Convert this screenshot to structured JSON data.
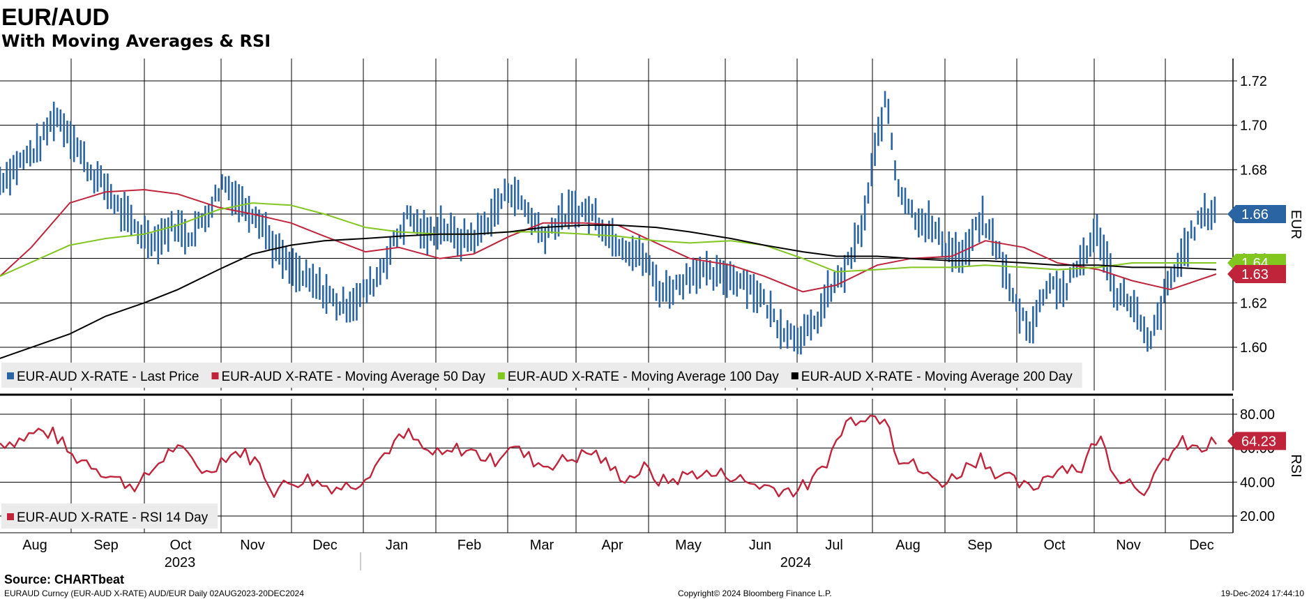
{
  "title": "EUR/AUD",
  "subtitle": "With Moving Averages & RSI",
  "source": "Source: CHARTbeat",
  "footer_left": "EURAUD Curncy (EUR-AUD X-RATE) AUD/EUR  Daily 02AUG2023-20DEC2024",
  "footer_center": "Copyright© 2024 Bloomberg Finance L.P.",
  "footer_right": "19-Dec-2024 17:44:10",
  "colors": {
    "price": "#2a64a3",
    "ma50": "#c0243b",
    "ma100": "#82c620",
    "ma200": "#000000",
    "rsi": "#c0243b"
  },
  "chart_data": [
    {
      "type": "line",
      "ylabel": "EUR",
      "ylim": [
        1.585,
        1.735
      ],
      "yticks": [
        1.6,
        1.62,
        1.64,
        1.66,
        1.68,
        1.7,
        1.72
      ],
      "ytick_labels": [
        "1.60",
        "1.62",
        "1.64",
        "1.66",
        "1.68",
        "1.70",
        "1.72"
      ],
      "grid": true,
      "legend_position": "bottom-left",
      "x_range": [
        "2023-08-02",
        "2024-12-20"
      ],
      "month_labels": [
        "Aug",
        "Sep",
        "Oct",
        "Nov",
        "Dec",
        "Jan",
        "Feb",
        "Mar",
        "Apr",
        "May",
        "Jun",
        "Jul",
        "Aug",
        "Sep",
        "Oct",
        "Nov",
        "Dec"
      ],
      "year_labels": [
        "2023",
        "2024"
      ],
      "series": [
        {
          "name": "EUR-AUD X-RATE - Last Price",
          "color": "#2a64a3",
          "style": "bars",
          "x": [
            "2023-08-02",
            "2023-08-10",
            "2023-08-18",
            "2023-08-25",
            "2023-09-01",
            "2023-09-08",
            "2023-09-15",
            "2023-09-22",
            "2023-09-29",
            "2023-10-06",
            "2023-10-13",
            "2023-10-20",
            "2023-10-27",
            "2023-11-03",
            "2023-11-10",
            "2023-11-17",
            "2023-11-24",
            "2023-12-01",
            "2023-12-08",
            "2023-12-15",
            "2023-12-22",
            "2023-12-29",
            "2024-01-05",
            "2024-01-12",
            "2024-01-19",
            "2024-01-26",
            "2024-02-02",
            "2024-02-09",
            "2024-02-16",
            "2024-02-23",
            "2024-03-01",
            "2024-03-08",
            "2024-03-15",
            "2024-03-22",
            "2024-03-29",
            "2024-04-05",
            "2024-04-12",
            "2024-04-19",
            "2024-04-26",
            "2024-05-03",
            "2024-05-10",
            "2024-05-17",
            "2024-05-24",
            "2024-05-31",
            "2024-06-07",
            "2024-06-14",
            "2024-06-21",
            "2024-06-28",
            "2024-07-05",
            "2024-07-12",
            "2024-07-19",
            "2024-07-26",
            "2024-08-02",
            "2024-08-05",
            "2024-08-09",
            "2024-08-16",
            "2024-08-23",
            "2024-08-30",
            "2024-09-06",
            "2024-09-13",
            "2024-09-20",
            "2024-09-27",
            "2024-10-04",
            "2024-10-11",
            "2024-10-18",
            "2024-10-25",
            "2024-11-01",
            "2024-11-08",
            "2024-11-15",
            "2024-11-22",
            "2024-11-29",
            "2024-12-06",
            "2024-12-13",
            "2024-12-20"
          ],
          "y": [
            1.675,
            1.683,
            1.69,
            1.705,
            1.695,
            1.68,
            1.672,
            1.66,
            1.652,
            1.648,
            1.655,
            1.65,
            1.66,
            1.675,
            1.665,
            1.66,
            1.645,
            1.635,
            1.63,
            1.625,
            1.618,
            1.622,
            1.63,
            1.645,
            1.66,
            1.65,
            1.655,
            1.648,
            1.65,
            1.66,
            1.672,
            1.662,
            1.65,
            1.658,
            1.662,
            1.66,
            1.65,
            1.645,
            1.64,
            1.625,
            1.628,
            1.635,
            1.632,
            1.632,
            1.63,
            1.622,
            1.61,
            1.605,
            1.608,
            1.625,
            1.635,
            1.655,
            1.7,
            1.712,
            1.675,
            1.66,
            1.655,
            1.645,
            1.64,
            1.658,
            1.645,
            1.62,
            1.608,
            1.63,
            1.625,
            1.64,
            1.652,
            1.625,
            1.62,
            1.6,
            1.625,
            1.642,
            1.658,
            1.662
          ]
        },
        {
          "name": "EUR-AUD X-RATE - Moving Average 50 Day",
          "color": "#c0243b",
          "style": "line",
          "x": [
            "2023-08-02",
            "2023-08-15",
            "2023-08-31",
            "2023-09-15",
            "2023-10-01",
            "2023-10-15",
            "2023-11-01",
            "2023-11-15",
            "2023-12-01",
            "2023-12-15",
            "2024-01-01",
            "2024-01-15",
            "2024-02-01",
            "2024-02-15",
            "2024-03-01",
            "2024-03-15",
            "2024-04-01",
            "2024-04-15",
            "2024-05-01",
            "2024-05-15",
            "2024-06-01",
            "2024-06-15",
            "2024-07-01",
            "2024-07-15",
            "2024-08-01",
            "2024-08-15",
            "2024-09-01",
            "2024-09-15",
            "2024-10-01",
            "2024-10-15",
            "2024-11-01",
            "2024-11-15",
            "2024-12-01",
            "2024-12-20"
          ],
          "y": [
            1.632,
            1.645,
            1.665,
            1.67,
            1.671,
            1.669,
            1.663,
            1.66,
            1.656,
            1.65,
            1.643,
            1.645,
            1.64,
            1.642,
            1.65,
            1.656,
            1.656,
            1.655,
            1.647,
            1.64,
            1.637,
            1.632,
            1.625,
            1.628,
            1.637,
            1.64,
            1.641,
            1.648,
            1.645,
            1.638,
            1.635,
            1.63,
            1.626,
            1.633
          ]
        },
        {
          "name": "EUR-AUD X-RATE - Moving Average 100 Day",
          "color": "#82c620",
          "style": "line",
          "x": [
            "2023-08-02",
            "2023-08-31",
            "2023-09-15",
            "2023-10-01",
            "2023-10-15",
            "2023-11-01",
            "2023-11-15",
            "2023-12-01",
            "2023-12-15",
            "2024-01-01",
            "2024-01-15",
            "2024-02-01",
            "2024-02-15",
            "2024-03-01",
            "2024-03-15",
            "2024-04-01",
            "2024-04-15",
            "2024-05-01",
            "2024-05-15",
            "2024-06-01",
            "2024-06-15",
            "2024-07-01",
            "2024-07-15",
            "2024-08-01",
            "2024-08-15",
            "2024-09-01",
            "2024-09-15",
            "2024-10-01",
            "2024-10-15",
            "2024-11-01",
            "2024-11-15",
            "2024-12-01",
            "2024-12-20"
          ],
          "y": [
            1.632,
            1.646,
            1.649,
            1.651,
            1.655,
            1.662,
            1.665,
            1.664,
            1.66,
            1.654,
            1.652,
            1.651,
            1.651,
            1.652,
            1.652,
            1.651,
            1.65,
            1.648,
            1.647,
            1.648,
            1.646,
            1.64,
            1.634,
            1.635,
            1.636,
            1.636,
            1.637,
            1.636,
            1.635,
            1.636,
            1.638,
            1.638,
            1.638
          ]
        },
        {
          "name": "EUR-AUD X-RATE - Moving Average 200 Day",
          "color": "#000000",
          "style": "line",
          "x": [
            "2023-08-02",
            "2023-08-31",
            "2023-09-15",
            "2023-10-01",
            "2023-10-15",
            "2023-11-01",
            "2023-11-15",
            "2023-12-01",
            "2023-12-15",
            "2024-01-01",
            "2024-01-15",
            "2024-02-01",
            "2024-02-15",
            "2024-03-01",
            "2024-03-15",
            "2024-04-01",
            "2024-04-15",
            "2024-05-01",
            "2024-05-15",
            "2024-06-01",
            "2024-06-15",
            "2024-07-01",
            "2024-07-15",
            "2024-08-01",
            "2024-08-15",
            "2024-09-01",
            "2024-09-15",
            "2024-10-01",
            "2024-10-15",
            "2024-11-01",
            "2024-11-15",
            "2024-12-01",
            "2024-12-20"
          ],
          "y": [
            1.595,
            1.606,
            1.614,
            1.62,
            1.626,
            1.635,
            1.642,
            1.646,
            1.648,
            1.649,
            1.65,
            1.651,
            1.651,
            1.652,
            1.654,
            1.655,
            1.655,
            1.654,
            1.652,
            1.649,
            1.646,
            1.643,
            1.641,
            1.641,
            1.64,
            1.639,
            1.639,
            1.638,
            1.637,
            1.637,
            1.636,
            1.636,
            1.635
          ]
        }
      ],
      "last_value_labels": [
        {
          "text": "1.66",
          "value": 1.66,
          "color": "#2a64a3"
        },
        {
          "text": "1.64",
          "value": 1.638,
          "color": "#82c620"
        },
        {
          "text": "1.63",
          "value": 1.633,
          "color": "#c0243b"
        }
      ]
    },
    {
      "type": "line",
      "ylabel": "RSI",
      "ylim": [
        15,
        87
      ],
      "yticks": [
        20,
        40,
        60,
        80
      ],
      "ytick_labels": [
        "20.00",
        "40.00",
        "60.00",
        "80.00"
      ],
      "grid": true,
      "legend_position": "bottom-left",
      "x_range": [
        "2023-08-02",
        "2024-12-20"
      ],
      "series": [
        {
          "name": "EUR-AUD X-RATE - RSI 14 Day",
          "color": "#c0243b",
          "x": [
            "2023-08-02",
            "2023-08-10",
            "2023-08-18",
            "2023-08-25",
            "2023-09-01",
            "2023-09-08",
            "2023-09-15",
            "2023-09-22",
            "2023-09-29",
            "2023-10-06",
            "2023-10-13",
            "2023-10-20",
            "2023-10-27",
            "2023-11-03",
            "2023-11-10",
            "2023-11-17",
            "2023-11-24",
            "2023-12-01",
            "2023-12-08",
            "2023-12-15",
            "2023-12-22",
            "2023-12-29",
            "2024-01-05",
            "2024-01-12",
            "2024-01-19",
            "2024-01-26",
            "2024-02-02",
            "2024-02-09",
            "2024-02-16",
            "2024-02-23",
            "2024-03-01",
            "2024-03-08",
            "2024-03-15",
            "2024-03-22",
            "2024-03-29",
            "2024-04-05",
            "2024-04-12",
            "2024-04-19",
            "2024-04-26",
            "2024-05-03",
            "2024-05-10",
            "2024-05-17",
            "2024-05-24",
            "2024-05-31",
            "2024-06-07",
            "2024-06-14",
            "2024-06-21",
            "2024-06-28",
            "2024-07-05",
            "2024-07-12",
            "2024-07-19",
            "2024-07-26",
            "2024-08-02",
            "2024-08-05",
            "2024-08-09",
            "2024-08-16",
            "2024-08-23",
            "2024-08-30",
            "2024-09-06",
            "2024-09-13",
            "2024-09-20",
            "2024-09-27",
            "2024-10-04",
            "2024-10-11",
            "2024-10-18",
            "2024-10-25",
            "2024-11-01",
            "2024-11-08",
            "2024-11-15",
            "2024-11-22",
            "2024-11-29",
            "2024-12-06",
            "2024-12-13",
            "2024-12-20"
          ],
          "y": [
            63,
            65,
            70,
            68,
            55,
            52,
            45,
            40,
            38,
            50,
            60,
            55,
            45,
            55,
            58,
            52,
            35,
            40,
            42,
            38,
            37,
            40,
            50,
            62,
            68,
            58,
            55,
            60,
            57,
            52,
            62,
            55,
            50,
            52,
            55,
            58,
            48,
            42,
            48,
            40,
            42,
            46,
            44,
            45,
            40,
            38,
            36,
            35,
            40,
            55,
            75,
            80,
            78,
            82,
            55,
            50,
            42,
            40,
            48,
            55,
            45,
            40,
            35,
            45,
            50,
            48,
            68,
            45,
            40,
            35,
            55,
            63,
            58,
            64
          ]
        }
      ],
      "last_value_labels": [
        {
          "text": "64.23",
          "value": 64.23,
          "color": "#c0243b"
        }
      ]
    }
  ]
}
